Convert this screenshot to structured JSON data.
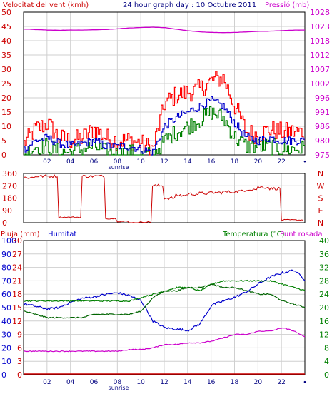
{
  "top": {
    "title_wind": "Velocitat del vent (kmh)",
    "title_center": "24 hour graph day : 10 Octubre 2011",
    "title_pressure": "Pressió (mb)"
  },
  "dir": {
    "compass": [
      "N",
      "W",
      "S",
      "E",
      "N"
    ]
  },
  "bottom": {
    "label_rain": "Pluja (mm)",
    "label_humidity": "Humitat",
    "label_temp": "Temperatura (°C)",
    "label_dew": "Punt rosada"
  },
  "x_axis": {
    "ticks": [
      "02",
      "04",
      "06",
      "08",
      "10",
      "12",
      "14",
      "16",
      "18",
      "20",
      "22"
    ],
    "sunrise": "sunrise"
  },
  "colors": {
    "wind_gust": "#ff0000",
    "wind_avg": "#0000cc",
    "wind_low": "#008000",
    "pressure": "#cc00cc",
    "direction": "#cc0000",
    "humidity": "#0000cc",
    "temperature": "#008000",
    "dew": "#cc00cc",
    "rain": "#cc0000",
    "grid": "#cfcfcf"
  },
  "chart_data": [
    {
      "type": "line",
      "title": "Velocitat del vent (kmh)",
      "x": [
        "00",
        "01",
        "02",
        "03",
        "04",
        "05",
        "06",
        "07",
        "08",
        "09",
        "10",
        "11",
        "12",
        "13",
        "14",
        "15",
        "16",
        "17",
        "18",
        "19",
        "20",
        "21",
        "22",
        "23",
        "24"
      ],
      "series": [
        {
          "values": [
            4,
            9,
            11,
            6,
            5,
            6,
            9,
            6,
            5,
            5,
            4,
            2,
            18,
            21,
            22,
            23,
            26,
            27,
            17,
            8,
            7,
            9,
            8,
            8,
            8
          ]
        },
        {
          "values": [
            2,
            5,
            6,
            4,
            3,
            4,
            5,
            3,
            3,
            3,
            2,
            1,
            10,
            13,
            15,
            17,
            19,
            17,
            11,
            6,
            5,
            6,
            5,
            5,
            5
          ]
        },
        {
          "values": [
            0,
            3,
            3,
            1,
            1,
            2,
            3,
            1,
            0,
            1,
            0,
            0,
            5,
            8,
            10,
            12,
            15,
            13,
            6,
            3,
            3,
            3,
            2,
            2,
            2
          ]
        },
        {
          "values": [
            1023.5,
            1023.3,
            1023.1,
            1023,
            1023.1,
            1023.1,
            1023.2,
            1023.3,
            1023.6,
            1023.9,
            1024.1,
            1024.2,
            1024,
            1023.4,
            1022.8,
            1022.4,
            1022.2,
            1022.1,
            1022.2,
            1022.4,
            1022.6,
            1022.7,
            1022.9,
            1023.1,
            1023.1
          ]
        }
      ],
      "ylim_left": [
        0,
        50
      ],
      "ylim_right": [
        975,
        1030
      ],
      "yticks_left": [
        0,
        5,
        10,
        15,
        20,
        25,
        30,
        35,
        40,
        45,
        50
      ],
      "yticks_right": [
        975,
        980,
        986,
        991,
        996,
        1002,
        1007,
        1012,
        1018,
        1023,
        1028
      ]
    },
    {
      "type": "line",
      "x": [
        "00",
        "01",
        "02",
        "03",
        "04",
        "05",
        "06",
        "07",
        "08",
        "09",
        "10",
        "11",
        "12",
        "13",
        "14",
        "15",
        "16",
        "17",
        "18",
        "19",
        "20",
        "21",
        "22",
        "23",
        "24"
      ],
      "series": [
        {
          "values": [
            330,
            340,
            340,
            40,
            40,
            340,
            340,
            30,
            10,
            0,
            5,
            270,
            180,
            200,
            210,
            215,
            220,
            225,
            230,
            245,
            260,
            250,
            20,
            20,
            20
          ]
        }
      ],
      "ylim": [
        0,
        360
      ],
      "yticks": [
        0,
        90,
        180,
        270,
        360
      ]
    },
    {
      "type": "line",
      "x": [
        "00",
        "01",
        "02",
        "03",
        "04",
        "05",
        "06",
        "07",
        "08",
        "09",
        "10",
        "11",
        "12",
        "13",
        "14",
        "15",
        "16",
        "17",
        "18",
        "19",
        "20",
        "21",
        "22",
        "23",
        "24"
      ],
      "series": [
        {
          "values": [
            0,
            0,
            0,
            0,
            0,
            0,
            0,
            0,
            0,
            0,
            0,
            0,
            0,
            0,
            0,
            0,
            0,
            0,
            0,
            0,
            0,
            0,
            0,
            0,
            0
          ]
        },
        {
          "values": [
            53,
            51,
            49,
            50,
            54,
            57,
            58,
            60,
            61,
            59,
            55,
            40,
            35,
            34,
            33,
            38,
            52,
            55,
            58,
            62,
            68,
            73,
            76,
            78,
            70
          ]
        },
        {
          "values": [
            22,
            22,
            22,
            22,
            22,
            22,
            22,
            22,
            22,
            22,
            23,
            24,
            25,
            26,
            26,
            25,
            27,
            28,
            28,
            28,
            28,
            28,
            27,
            26,
            25
          ]
        },
        {
          "values": [
            19,
            18,
            17,
            17,
            17,
            17,
            18,
            18,
            18,
            18,
            19,
            23,
            25,
            25,
            26,
            26,
            27,
            26,
            26,
            25,
            24,
            24,
            22,
            21,
            20
          ]
        },
        {
          "values": [
            7,
            7,
            7,
            7,
            7,
            7,
            7,
            7,
            7,
            7.5,
            7.5,
            8,
            9,
            9,
            9.5,
            9.5,
            10,
            11,
            12,
            12,
            13,
            13,
            14,
            13,
            11
          ]
        }
      ],
      "ylim_rain": [
        0,
        30
      ],
      "ylim_hum": [
        0,
        100
      ],
      "ylim_temp": [
        0,
        40
      ],
      "yticks_rain": [
        0,
        3,
        6,
        9,
        12,
        15,
        18,
        21,
        24,
        27,
        30
      ],
      "yticks_hum": [
        0,
        10,
        20,
        30,
        40,
        50,
        60,
        70,
        80,
        90,
        100
      ],
      "yticks_temp": [
        0,
        4,
        8,
        12,
        16,
        20,
        24,
        28,
        32,
        36,
        40
      ]
    }
  ]
}
